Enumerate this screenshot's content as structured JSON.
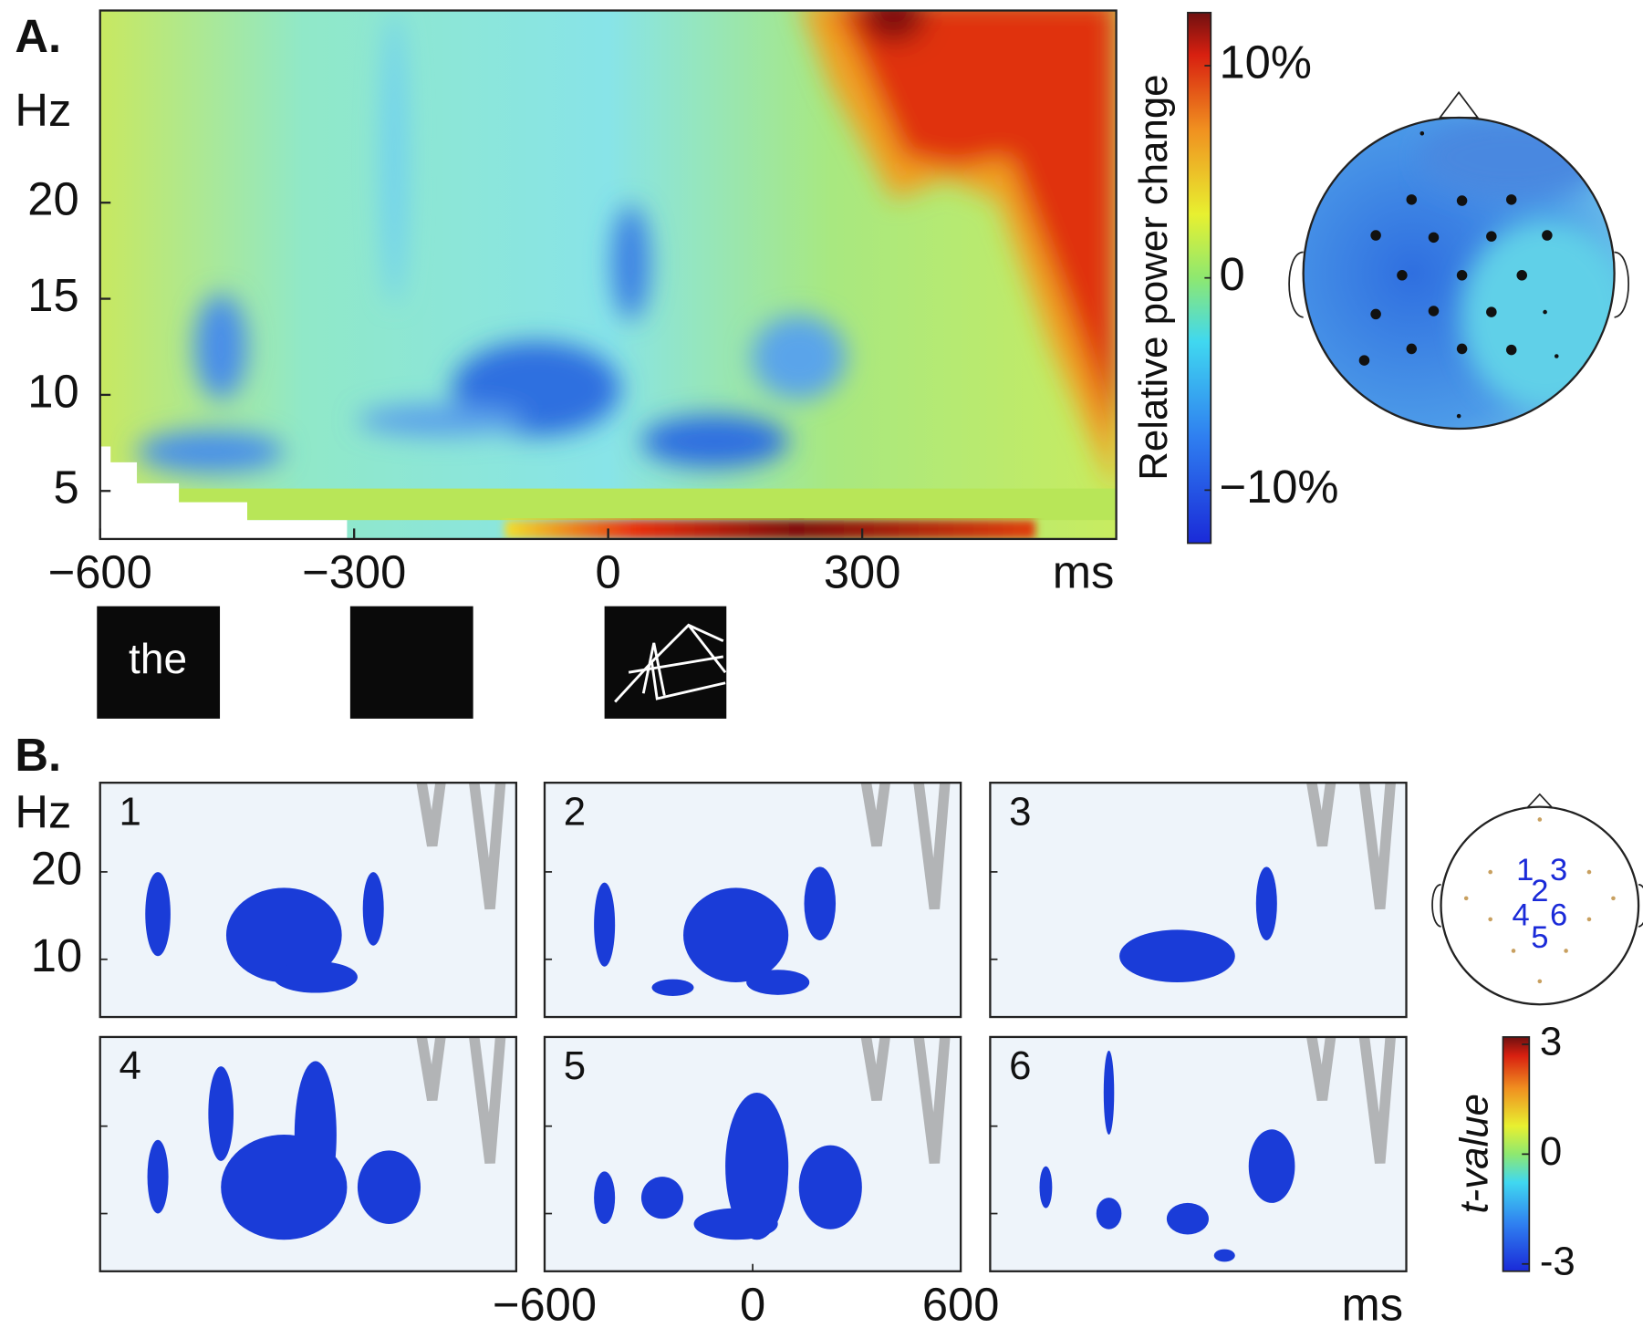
{
  "panel_a": {
    "label": "A.",
    "y_label": "Hz",
    "x_label": "ms",
    "xlim": [
      -600,
      600
    ],
    "xticks": [
      {
        "value": -600,
        "label": "−600"
      },
      {
        "value": -300,
        "label": "−300"
      },
      0,
      300
    ],
    "ylim": [
      2.5,
      30
    ],
    "yticks": [
      5,
      10,
      15,
      20
    ],
    "colorbar": {
      "label": "Relative power change",
      "lim": [
        -12.5,
        12.5
      ],
      "ticks": [
        {
          "value": 10,
          "label": "10%"
        },
        0,
        {
          "value": -10,
          "label": "−10%"
        }
      ]
    },
    "stimulus_word": "the"
  },
  "panel_b": {
    "label": "B.",
    "y_label": "Hz",
    "x_label": "ms",
    "xlim": [
      -600,
      600
    ],
    "xticks": [
      {
        "value": -600,
        "label": "−600"
      },
      0,
      600
    ],
    "ylim": [
      3.4,
      30.2
    ],
    "yticks": [
      10,
      20
    ],
    "subplots": [
      "1",
      "2",
      "3",
      "4",
      "5",
      "6"
    ],
    "electrodes": [
      "1",
      "2",
      "3",
      "4",
      "5",
      "6"
    ],
    "colorbar": {
      "label": "t-value",
      "lim": [
        -3.2,
        3.2
      ],
      "ticks": [
        -3,
        0,
        3
      ]
    }
  }
}
